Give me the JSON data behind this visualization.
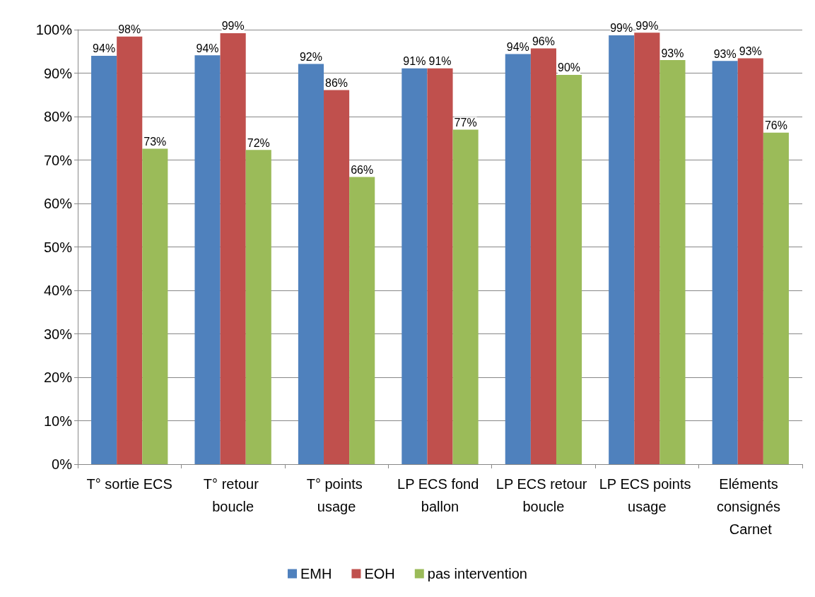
{
  "chart_data": {
    "type": "bar",
    "categories": [
      "T° sortie ECS",
      "T° retour boucle",
      "T° points usage",
      "LP ECS fond ballon",
      "LP ECS retour boucle",
      "LP ECS points usage",
      "Eléments consignés Carnet"
    ],
    "series": [
      {
        "name": "EMH",
        "color": "#4f81bd",
        "values": [
          94,
          94.1,
          92.1,
          91.1,
          94.4,
          98.7,
          92.8
        ],
        "value_labels": [
          "94%",
          "94%",
          "92%",
          "91%",
          "94%",
          "99%",
          "93%"
        ]
      },
      {
        "name": "EOH",
        "color": "#c0504d",
        "values": [
          98.4,
          99.2,
          86.1,
          91.1,
          95.7,
          99.3,
          93.4
        ],
        "value_labels": [
          "98%",
          "99%",
          "86%",
          "91%",
          "96%",
          "99%",
          "93%"
        ]
      },
      {
        "name": "pas intervention",
        "color": "#9bbb59",
        "values": [
          72.6,
          72.3,
          66.1,
          77,
          89.6,
          93,
          76.3
        ],
        "value_labels": [
          "73%",
          "72%",
          "66%",
          "77%",
          "90%",
          "93%",
          "76%"
        ]
      }
    ],
    "ylim": [
      0,
      100
    ],
    "yticks": [
      {
        "value": 0,
        "label": "0%"
      },
      {
        "value": 10,
        "label": "10%"
      },
      {
        "value": 20,
        "label": "20%"
      },
      {
        "value": 30,
        "label": "30%"
      },
      {
        "value": 40,
        "label": "40%"
      },
      {
        "value": 50,
        "label": "50%"
      },
      {
        "value": 60,
        "label": "60%"
      },
      {
        "value": 70,
        "label": "70%"
      },
      {
        "value": 80,
        "label": "80%"
      },
      {
        "value": 90,
        "label": "90%"
      },
      {
        "value": 100,
        "label": "100%"
      }
    ],
    "grid": "y",
    "legend": "bottom"
  }
}
